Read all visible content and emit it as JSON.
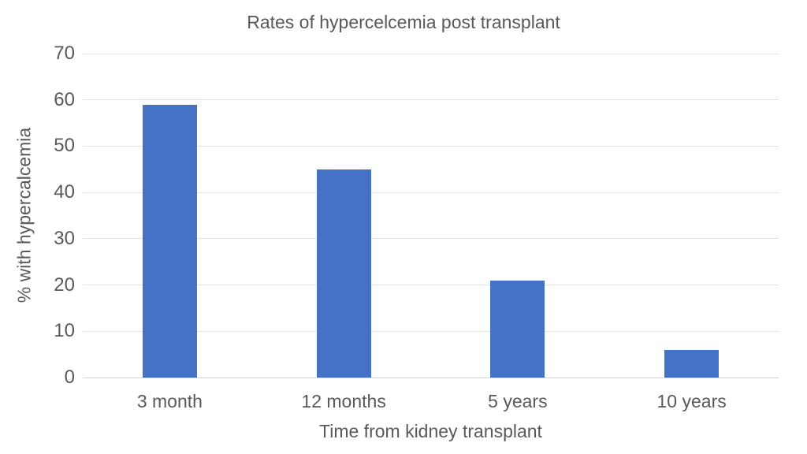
{
  "chart_data": {
    "type": "bar",
    "title": "Rates of hypercelcemia post transplant",
    "categories": [
      "3 month",
      "12 months",
      "5 years",
      "10 years"
    ],
    "values": [
      59,
      45,
      21,
      6
    ],
    "xlabel": "Time from kidney transplant",
    "ylabel": "% with hypercalcemia",
    "ylim": [
      0,
      70
    ],
    "ytick_step": 10,
    "ytick_labels": [
      "0",
      "10",
      "20",
      "30",
      "40",
      "50",
      "60",
      "70"
    ],
    "grid": true,
    "legend": "none"
  },
  "colors": {
    "bar_fill": "#4472C4",
    "text": "#595959",
    "gridline": "#e2e2e2",
    "axis_line": "#d2d2d2",
    "background": "#ffffff"
  }
}
